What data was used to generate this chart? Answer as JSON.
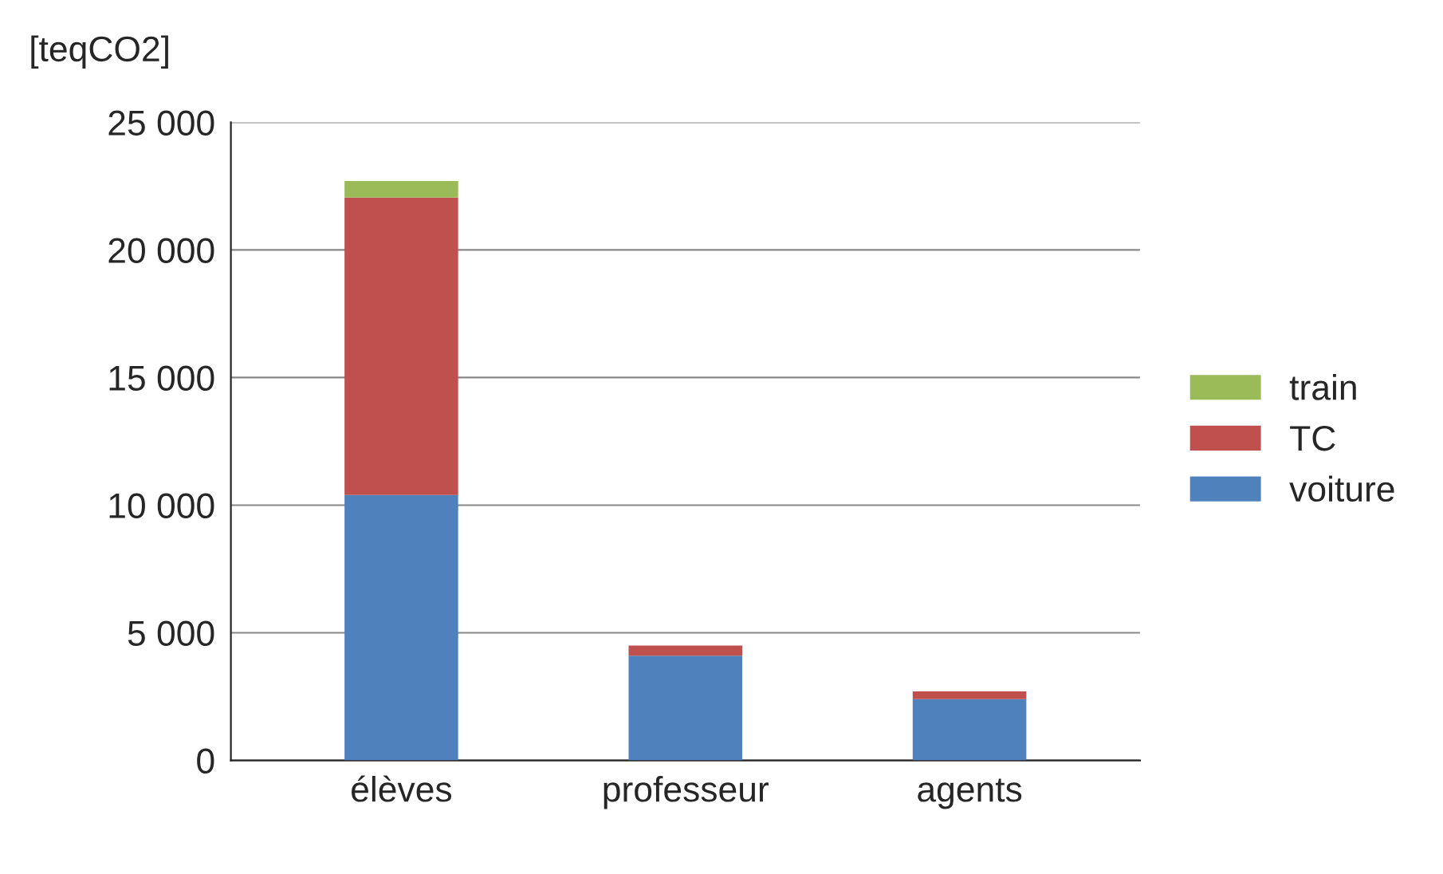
{
  "chart_data": {
    "type": "bar",
    "stacked": true,
    "ylabel": "[teqCO2]",
    "categories": [
      "élèves",
      "professeur",
      "agents"
    ],
    "series": [
      {
        "name": "voiture",
        "color": "#4f81bd",
        "values": [
          10400,
          4100,
          2400
        ]
      },
      {
        "name": "TC",
        "color": "#c0504d",
        "values": [
          11650,
          400,
          300
        ]
      },
      {
        "name": "train",
        "color": "#9bbb59",
        "values": [
          650,
          null,
          null
        ]
      }
    ],
    "ylim": [
      0,
      25000
    ],
    "yticks": [
      {
        "value": 0,
        "label": "0"
      },
      {
        "value": 5000,
        "label": "5 000"
      },
      {
        "value": 10000,
        "label": "10 000"
      },
      {
        "value": 15000,
        "label": "15 000"
      },
      {
        "value": 20000,
        "label": "20 000"
      },
      {
        "value": 25000,
        "label": "25 000"
      }
    ],
    "grid": "y",
    "legend": "right"
  }
}
